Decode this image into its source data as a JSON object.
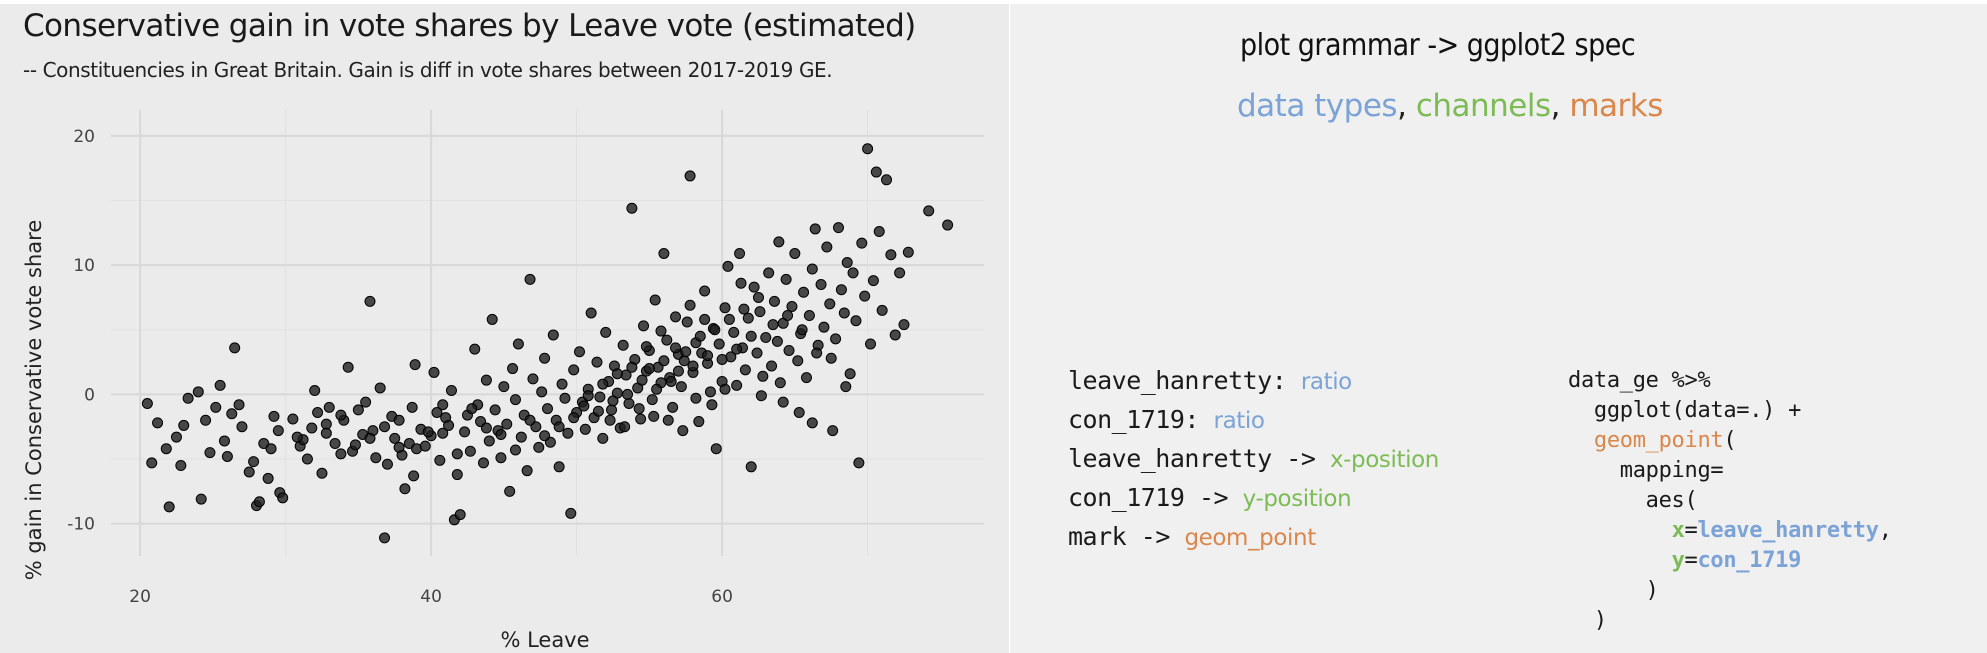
{
  "chart": {
    "title": "Conservative gain in vote shares by Leave vote (estimated)",
    "subtitle": "-- Constituencies in Great Britain. Gain is diff in vote shares between 2017-2019 GE."
  },
  "right": {
    "title": "plot grammar -> ggplot2 spec",
    "sub_types": "data types",
    "sub_sep1": ", ",
    "sub_channels": "channels",
    "sub_sep2": ", ",
    "sub_marks": "marks",
    "encodings": [
      {
        "var": "leave_hanretty",
        "arrow": ": ",
        "label": "ratio",
        "color": "#7ba3d6"
      },
      {
        "var": "con_1719",
        "arrow": ": ",
        "label": "ratio",
        "color": "#7ba3d6"
      },
      {
        "var": "leave_hanretty",
        "arrow": " -> ",
        "label": "x-position",
        "color": "#7dbb55"
      },
      {
        "var": "con_1719",
        "arrow": " -> ",
        "label": "y-position",
        "color": "#7dbb55"
      },
      {
        "var": "mark",
        "arrow": " -> ",
        "label": "geom_point",
        "color": "#d9874a"
      }
    ],
    "code": {
      "line1": "data_ge %>%",
      "line2": "ggplot(data=.) +",
      "line3_fn": "geom_point",
      "line3_paren": "(",
      "line4": "mapping=",
      "line5": "aes(",
      "x_key": "x",
      "x_eq": "=",
      "x_val": "leave_hanretty",
      "x_comma": ",",
      "y_key": "y",
      "y_eq": "=",
      "y_val": "con_1719",
      "close1": ")",
      "close2": ")"
    }
  },
  "colors": {
    "panel_bg": "#ebebeb",
    "grid": "#dcdcdc",
    "point_fill": "#222222",
    "blue": "#7ba3d6",
    "green": "#7dbb55",
    "orange": "#d9874a"
  },
  "chart_data": {
    "type": "scatter",
    "title": "Conservative gain in vote shares by Leave vote (estimated)",
    "subtitle": "-- Constituencies in Great Britain. Gain is diff in vote shares between 2017-2019 GE.",
    "xlabel": "% Leave",
    "ylabel": "% gain in Conservative vote share",
    "xlim": [
      18,
      78
    ],
    "ylim": [
      -12.5,
      22
    ],
    "x_ticks": [
      20,
      40,
      60
    ],
    "y_ticks": [
      -10,
      0,
      10,
      20
    ],
    "grid": true,
    "points": [
      [
        20.5,
        -0.7
      ],
      [
        20.8,
        -5.3
      ],
      [
        21.2,
        -2.2
      ],
      [
        21.8,
        -4.2
      ],
      [
        22.0,
        -8.7
      ],
      [
        22.5,
        -3.3
      ],
      [
        22.8,
        -5.5
      ],
      [
        23.0,
        -2.4
      ],
      [
        23.3,
        -0.3
      ],
      [
        24.0,
        0.2
      ],
      [
        24.2,
        -8.1
      ],
      [
        24.5,
        -2.0
      ],
      [
        24.8,
        -4.5
      ],
      [
        25.2,
        -1.0
      ],
      [
        25.5,
        0.7
      ],
      [
        25.8,
        -3.6
      ],
      [
        26.0,
        -4.8
      ],
      [
        26.3,
        -1.5
      ],
      [
        26.5,
        3.6
      ],
      [
        26.8,
        -0.8
      ],
      [
        27.0,
        -2.5
      ],
      [
        27.5,
        -6.0
      ],
      [
        27.8,
        -5.2
      ],
      [
        28.0,
        -8.6
      ],
      [
        28.2,
        -8.3
      ],
      [
        28.5,
        -3.8
      ],
      [
        28.8,
        -6.5
      ],
      [
        29.0,
        -4.2
      ],
      [
        29.2,
        -1.7
      ],
      [
        29.5,
        -2.8
      ],
      [
        29.6,
        -7.6
      ],
      [
        29.8,
        -8.0
      ],
      [
        30.5,
        -1.9
      ],
      [
        31.0,
        -4.0
      ],
      [
        31.2,
        -3.5
      ],
      [
        31.5,
        -5.0
      ],
      [
        32.0,
        0.3
      ],
      [
        32.2,
        -1.4
      ],
      [
        32.5,
        -6.1
      ],
      [
        32.8,
        -2.3
      ],
      [
        33.0,
        -1.0
      ],
      [
        33.4,
        -3.8
      ],
      [
        33.8,
        -4.6
      ],
      [
        34.0,
        -2.0
      ],
      [
        34.3,
        2.1
      ],
      [
        34.6,
        -4.4
      ],
      [
        35.0,
        -1.2
      ],
      [
        35.3,
        -3.1
      ],
      [
        35.5,
        -0.6
      ],
      [
        35.8,
        7.2
      ],
      [
        36.0,
        -2.8
      ],
      [
        36.2,
        -4.9
      ],
      [
        36.5,
        0.5
      ],
      [
        36.8,
        -11.1
      ],
      [
        37.0,
        -5.4
      ],
      [
        37.3,
        -1.7
      ],
      [
        37.5,
        -3.4
      ],
      [
        37.8,
        -2.0
      ],
      [
        38.0,
        -4.7
      ],
      [
        38.2,
        -7.3
      ],
      [
        38.5,
        -3.8
      ],
      [
        38.7,
        -1.0
      ],
      [
        38.9,
        2.3
      ],
      [
        39.0,
        -4.2
      ],
      [
        39.3,
        -2.7
      ],
      [
        39.6,
        -4.0
      ],
      [
        40.0,
        -3.2
      ],
      [
        40.2,
        1.7
      ],
      [
        40.4,
        -1.4
      ],
      [
        40.6,
        -5.1
      ],
      [
        40.8,
        -3.0
      ],
      [
        41.0,
        -1.8
      ],
      [
        41.2,
        -2.4
      ],
      [
        41.4,
        0.3
      ],
      [
        41.6,
        -9.7
      ],
      [
        41.8,
        -6.2
      ],
      [
        42.0,
        -9.3
      ],
      [
        42.3,
        -2.9
      ],
      [
        42.5,
        -1.6
      ],
      [
        42.7,
        -4.4
      ],
      [
        43.0,
        3.5
      ],
      [
        43.2,
        -0.8
      ],
      [
        43.4,
        -2.1
      ],
      [
        43.6,
        -5.3
      ],
      [
        43.8,
        1.1
      ],
      [
        44.0,
        -3.6
      ],
      [
        44.2,
        5.8
      ],
      [
        44.4,
        -1.2
      ],
      [
        44.6,
        -2.8
      ],
      [
        44.8,
        -4.9
      ],
      [
        45.0,
        0.6
      ],
      [
        45.2,
        -2.3
      ],
      [
        45.4,
        -7.5
      ],
      [
        45.6,
        2.0
      ],
      [
        45.8,
        -0.4
      ],
      [
        46.0,
        3.9
      ],
      [
        46.2,
        -3.3
      ],
      [
        46.4,
        -1.6
      ],
      [
        46.6,
        -5.9
      ],
      [
        46.8,
        8.9
      ],
      [
        47.0,
        1.2
      ],
      [
        47.2,
        -2.5
      ],
      [
        47.4,
        -4.1
      ],
      [
        47.6,
        0.2
      ],
      [
        47.8,
        2.8
      ],
      [
        48.0,
        -1.1
      ],
      [
        48.2,
        -3.7
      ],
      [
        48.4,
        4.6
      ],
      [
        48.6,
        -2.0
      ],
      [
        48.8,
        -5.6
      ],
      [
        49.0,
        0.8
      ],
      [
        49.2,
        -0.3
      ],
      [
        49.4,
        -3.0
      ],
      [
        49.6,
        -9.2
      ],
      [
        49.8,
        1.9
      ],
      [
        50.0,
        -1.4
      ],
      [
        50.2,
        3.3
      ],
      [
        50.4,
        -0.6
      ],
      [
        50.6,
        -2.7
      ],
      [
        50.8,
        0.4
      ],
      [
        51.0,
        6.3
      ],
      [
        51.2,
        -1.8
      ],
      [
        51.4,
        2.5
      ],
      [
        51.6,
        -0.2
      ],
      [
        51.8,
        -3.4
      ],
      [
        52.0,
        4.8
      ],
      [
        52.2,
        1.0
      ],
      [
        52.4,
        -1.2
      ],
      [
        52.6,
        2.2
      ],
      [
        52.8,
        0.1
      ],
      [
        53.0,
        -2.6
      ],
      [
        53.2,
        3.8
      ],
      [
        53.4,
        1.5
      ],
      [
        53.6,
        -0.7
      ],
      [
        53.8,
        14.4
      ],
      [
        54.0,
        2.7
      ],
      [
        54.2,
        0.5
      ],
      [
        54.4,
        -1.9
      ],
      [
        54.6,
        5.3
      ],
      [
        54.8,
        1.8
      ],
      [
        55.0,
        3.4
      ],
      [
        55.2,
        -0.4
      ],
      [
        55.4,
        7.3
      ],
      [
        55.6,
        2.1
      ],
      [
        55.8,
        0.9
      ],
      [
        56.0,
        10.9
      ],
      [
        56.2,
        4.2
      ],
      [
        56.4,
        1.3
      ],
      [
        56.6,
        -1.0
      ],
      [
        56.8,
        6.0
      ],
      [
        57.0,
        3.1
      ],
      [
        57.2,
        0.6
      ],
      [
        57.4,
        2.6
      ],
      [
        57.6,
        5.6
      ],
      [
        57.8,
        16.9
      ],
      [
        58.0,
        1.7
      ],
      [
        58.2,
        4.0
      ],
      [
        58.4,
        -2.1
      ],
      [
        58.6,
        3.2
      ],
      [
        58.8,
        8.0
      ],
      [
        59.0,
        2.4
      ],
      [
        59.2,
        0.2
      ],
      [
        59.4,
        5.1
      ],
      [
        59.6,
        -4.2
      ],
      [
        59.8,
        3.9
      ],
      [
        60.0,
        1.0
      ],
      [
        60.2,
        6.7
      ],
      [
        60.4,
        9.9
      ],
      [
        60.6,
        2.9
      ],
      [
        60.8,
        4.8
      ],
      [
        61.0,
        0.7
      ],
      [
        61.2,
        10.9
      ],
      [
        61.4,
        3.6
      ],
      [
        61.6,
        1.9
      ],
      [
        61.8,
        5.9
      ],
      [
        62.0,
        -5.6
      ],
      [
        62.2,
        8.3
      ],
      [
        62.4,
        3.2
      ],
      [
        62.6,
        6.4
      ],
      [
        62.8,
        1.4
      ],
      [
        63.0,
        4.4
      ],
      [
        63.2,
        9.4
      ],
      [
        63.4,
        2.2
      ],
      [
        63.6,
        7.2
      ],
      [
        63.8,
        4.1
      ],
      [
        64.0,
        0.9
      ],
      [
        64.2,
        5.5
      ],
      [
        64.4,
        8.9
      ],
      [
        64.6,
        3.4
      ],
      [
        64.8,
        6.8
      ],
      [
        65.0,
        10.9
      ],
      [
        65.2,
        2.6
      ],
      [
        65.4,
        4.7
      ],
      [
        65.6,
        7.9
      ],
      [
        65.8,
        1.3
      ],
      [
        66.0,
        6.1
      ],
      [
        66.2,
        9.7
      ],
      [
        66.4,
        12.8
      ],
      [
        66.6,
        3.8
      ],
      [
        66.8,
        8.5
      ],
      [
        67.0,
        5.2
      ],
      [
        67.2,
        11.4
      ],
      [
        67.4,
        7.0
      ],
      [
        67.6,
        -2.8
      ],
      [
        67.8,
        4.3
      ],
      [
        68.0,
        12.9
      ],
      [
        68.2,
        8.1
      ],
      [
        68.4,
        6.3
      ],
      [
        68.6,
        10.2
      ],
      [
        68.8,
        1.6
      ],
      [
        69.0,
        9.4
      ],
      [
        69.2,
        5.7
      ],
      [
        69.4,
        -5.3
      ],
      [
        69.6,
        11.7
      ],
      [
        69.8,
        7.6
      ],
      [
        70.0,
        19.0
      ],
      [
        70.2,
        3.9
      ],
      [
        70.4,
        8.8
      ],
      [
        70.6,
        17.2
      ],
      [
        70.8,
        12.6
      ],
      [
        71.0,
        6.5
      ],
      [
        71.3,
        16.6
      ],
      [
        71.6,
        10.8
      ],
      [
        71.9,
        4.6
      ],
      [
        72.2,
        9.4
      ],
      [
        72.5,
        5.4
      ],
      [
        72.8,
        11.0
      ],
      [
        74.2,
        14.2
      ],
      [
        75.5,
        13.1
      ],
      [
        58.2,
        -0.3
      ],
      [
        56.5,
        1.0
      ],
      [
        57.0,
        1.8
      ],
      [
        58.0,
        2.2
      ],
      [
        59.0,
        3.0
      ],
      [
        60.0,
        2.7
      ],
      [
        61.0,
        3.5
      ],
      [
        62.0,
        4.5
      ],
      [
        55.5,
        0.4
      ],
      [
        54.5,
        1.1
      ],
      [
        53.5,
        0.0
      ],
      [
        52.5,
        -0.5
      ],
      [
        51.5,
        -1.3
      ],
      [
        50.5,
        -0.9
      ],
      [
        55.0,
        2.0
      ],
      [
        56.0,
        2.6
      ],
      [
        57.5,
        3.3
      ],
      [
        58.5,
        4.5
      ],
      [
        59.5,
        5.0
      ],
      [
        60.5,
        5.8
      ],
      [
        61.5,
        6.6
      ],
      [
        62.5,
        7.5
      ],
      [
        63.5,
        5.4
      ],
      [
        64.5,
        6.1
      ],
      [
        65.5,
        5.0
      ],
      [
        66.5,
        3.2
      ],
      [
        67.5,
        2.8
      ],
      [
        58.8,
        5.8
      ],
      [
        57.8,
        6.9
      ],
      [
        56.8,
        3.6
      ],
      [
        55.8,
        4.9
      ],
      [
        54.8,
        3.7
      ],
      [
        53.8,
        2.1
      ],
      [
        52.8,
        1.6
      ],
      [
        51.8,
        0.8
      ],
      [
        50.8,
        -0.1
      ],
      [
        49.8,
        -1.8
      ],
      [
        48.8,
        -2.5
      ],
      [
        47.8,
        -3.2
      ],
      [
        46.8,
        -2.0
      ],
      [
        45.8,
        -4.3
      ],
      [
        44.8,
        -3.1
      ],
      [
        43.8,
        -2.6
      ],
      [
        42.8,
        -1.1
      ],
      [
        41.8,
        -4.6
      ],
      [
        40.8,
        -0.8
      ],
      [
        39.8,
        -2.9
      ],
      [
        38.8,
        -6.3
      ],
      [
        37.8,
        -4.1
      ],
      [
        36.8,
        -2.5
      ],
      [
        35.8,
        -3.4
      ],
      [
        34.8,
        -3.9
      ],
      [
        33.8,
        -1.6
      ],
      [
        32.8,
        -3.0
      ],
      [
        31.8,
        -2.6
      ],
      [
        30.8,
        -3.3
      ],
      [
        60.2,
        0.4
      ],
      [
        61.3,
        8.6
      ],
      [
        62.7,
        -0.1
      ],
      [
        63.9,
        11.8
      ],
      [
        65.3,
        -1.4
      ],
      [
        66.2,
        -2.2
      ],
      [
        68.5,
        0.6
      ],
      [
        64.2,
        -0.6
      ],
      [
        59.3,
        -0.8
      ],
      [
        57.3,
        -2.8
      ],
      [
        56.3,
        -2.0
      ],
      [
        55.3,
        -1.7
      ],
      [
        54.3,
        -1.1
      ],
      [
        53.3,
        -2.5
      ],
      [
        52.3,
        -2.0
      ]
    ]
  }
}
